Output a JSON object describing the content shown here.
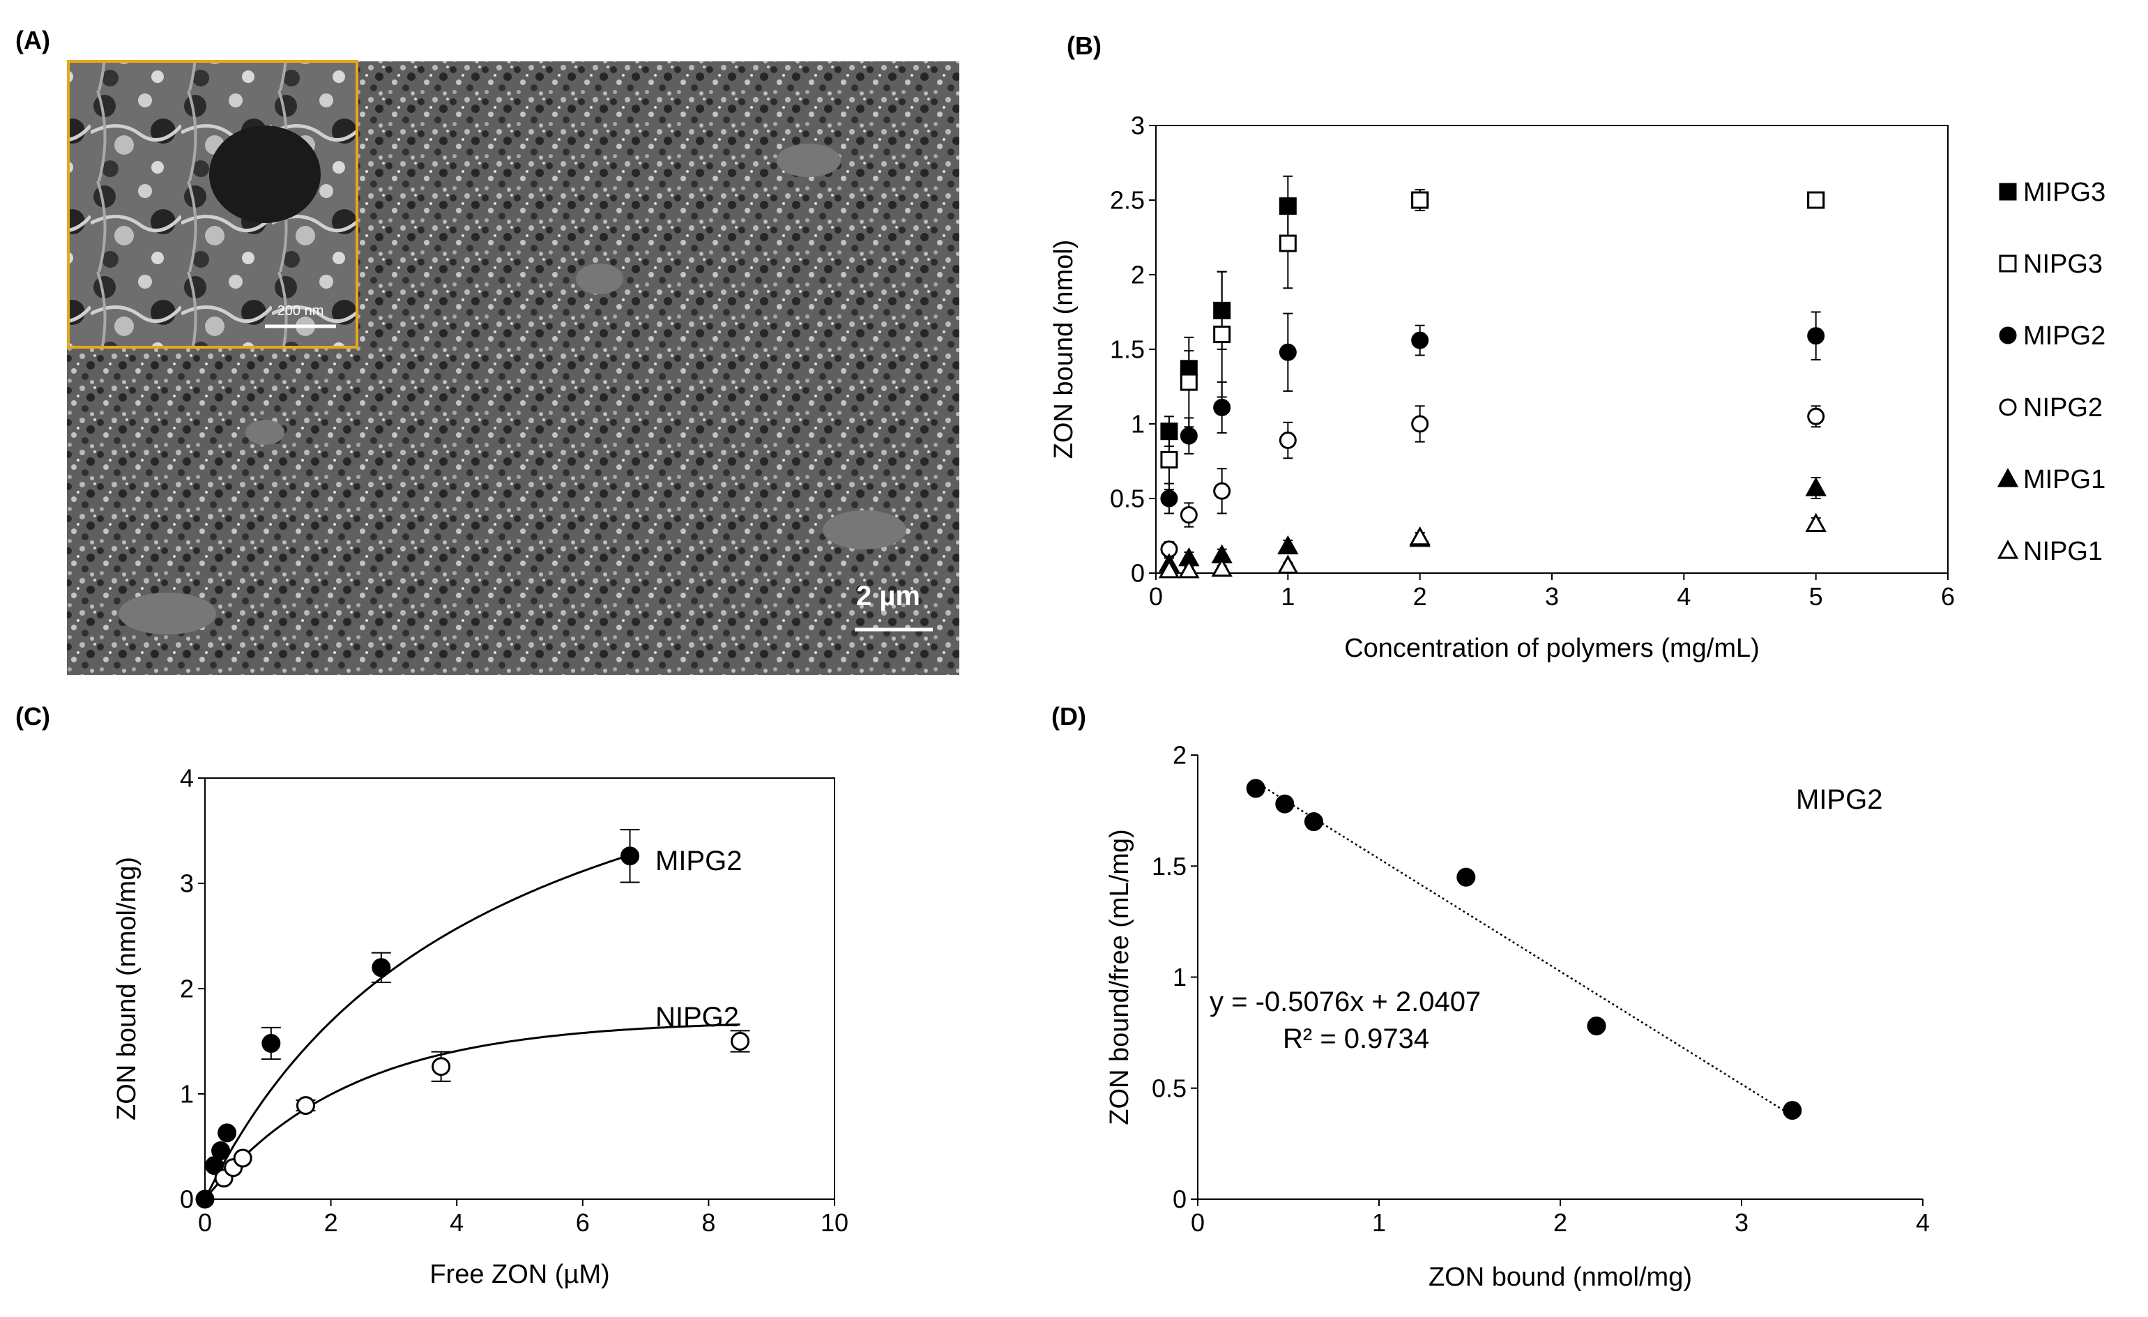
{
  "panels": {
    "a": {
      "label": "(A)",
      "scale_bar": "2 µm",
      "inset_scale_bar": "200 nm"
    },
    "b": {
      "label": "(B)"
    },
    "c": {
      "label": "(C)"
    },
    "d": {
      "label": "(D)"
    }
  },
  "chart_data": [
    {
      "panel": "B",
      "type": "scatter",
      "xlabel": "Concentration of polymers (mg/mL)",
      "ylabel": "ZON bound (nmol)",
      "xlim": [
        0,
        6
      ],
      "ylim": [
        0,
        3
      ],
      "xticks": [
        "0",
        "1",
        "2",
        "3",
        "4",
        "5",
        "6"
      ],
      "yticks": [
        "0",
        "0.5",
        "1",
        "1.5",
        "2",
        "2.5",
        "3"
      ],
      "legend_position": "right",
      "x": [
        0.1,
        0.25,
        0.5,
        1,
        2,
        5
      ],
      "series": [
        {
          "name": "MIPG3",
          "marker": "square-filled",
          "values": [
            0.95,
            1.37,
            1.76,
            2.46,
            2.5,
            2.5
          ],
          "errors": [
            0.1,
            0.12,
            0.26,
            0.2,
            0.07,
            0.0
          ]
        },
        {
          "name": "NIPG3",
          "marker": "square-open",
          "values": [
            0.76,
            1.28,
            1.6,
            2.21,
            2.5,
            2.5
          ],
          "errors": [
            0.2,
            0.3,
            0.42,
            0.3,
            0.07,
            0.0
          ]
        },
        {
          "name": "MIPG2",
          "marker": "circle-filled",
          "values": [
            0.5,
            0.92,
            1.11,
            1.48,
            1.56,
            1.59
          ],
          "errors": [
            0.1,
            0.12,
            0.17,
            0.26,
            0.1,
            0.16
          ]
        },
        {
          "name": "NIPG2",
          "marker": "circle-open",
          "values": [
            0.16,
            0.39,
            0.55,
            0.89,
            1.0,
            1.05
          ],
          "errors": [
            0.05,
            0.08,
            0.15,
            0.12,
            0.12,
            0.07
          ]
        },
        {
          "name": "MIPG1",
          "marker": "triangle-filled",
          "values": [
            0.06,
            0.1,
            0.12,
            0.18,
            0.23,
            0.57
          ],
          "errors": [
            0.04,
            0.04,
            0.04,
            0.04,
            0.04,
            0.07
          ]
        },
        {
          "name": "NIPG1",
          "marker": "triangle-open",
          "values": [
            0.02,
            0.02,
            0.03,
            0.05,
            0.24,
            0.33
          ],
          "errors": [
            0.02,
            0.02,
            0.02,
            0.02,
            0.03,
            0.04
          ]
        }
      ]
    },
    {
      "panel": "C",
      "type": "scatter",
      "xlabel": "Free ZON (µM)",
      "ylabel": "ZON bound (nmol/mg)",
      "xlim": [
        0,
        10
      ],
      "ylim": [
        0,
        4
      ],
      "xticks": [
        "0",
        "2",
        "4",
        "6",
        "8",
        "10"
      ],
      "yticks": [
        "0",
        "1",
        "2",
        "3",
        "4"
      ],
      "series": [
        {
          "name": "MIPG2",
          "marker": "circle-filled",
          "x": [
            0,
            0.15,
            0.25,
            0.35,
            1.05,
            2.8,
            6.75
          ],
          "values": [
            0,
            0.32,
            0.46,
            0.63,
            1.48,
            2.2,
            3.26
          ],
          "errors": [
            0,
            0,
            0,
            0,
            0.15,
            0.14,
            0.25
          ],
          "fit": {
            "bmax": 5.4,
            "kd": 4.4
          }
        },
        {
          "name": "NIPG2",
          "marker": "circle-open",
          "x": [
            0.3,
            0.45,
            0.6,
            1.6,
            3.75,
            8.5
          ],
          "values": [
            0.2,
            0.3,
            0.39,
            0.89,
            1.26,
            1.5
          ],
          "errors": [
            0,
            0,
            0,
            0.05,
            0.14,
            0.1
          ],
          "fit": {
            "bmax": 1.7,
            "k": 0.44
          }
        }
      ]
    },
    {
      "panel": "D",
      "type": "scatter",
      "xlabel": "ZON bound (nmol/mg)",
      "ylabel": "ZON bound/free (mL/mg)",
      "xlim": [
        0,
        4
      ],
      "ylim": [
        0,
        2
      ],
      "xticks": [
        "0",
        "1",
        "2",
        "3",
        "4"
      ],
      "yticks": [
        "0",
        "0.5",
        "1",
        "1.5",
        "2"
      ],
      "annotation": "MIPG2",
      "equation": "y = -0.5076x + 2.0407",
      "r2": "R² = 0.9734",
      "trendline": {
        "slope": -0.5076,
        "intercept": 2.0407,
        "x_range": [
          0.32,
          3.28
        ]
      },
      "series": [
        {
          "name": "MIPG2",
          "marker": "circle-filled",
          "x": [
            0.32,
            0.48,
            0.64,
            1.48,
            2.2,
            3.28
          ],
          "values": [
            1.85,
            1.78,
            1.7,
            1.45,
            0.78,
            0.4
          ]
        }
      ]
    }
  ]
}
